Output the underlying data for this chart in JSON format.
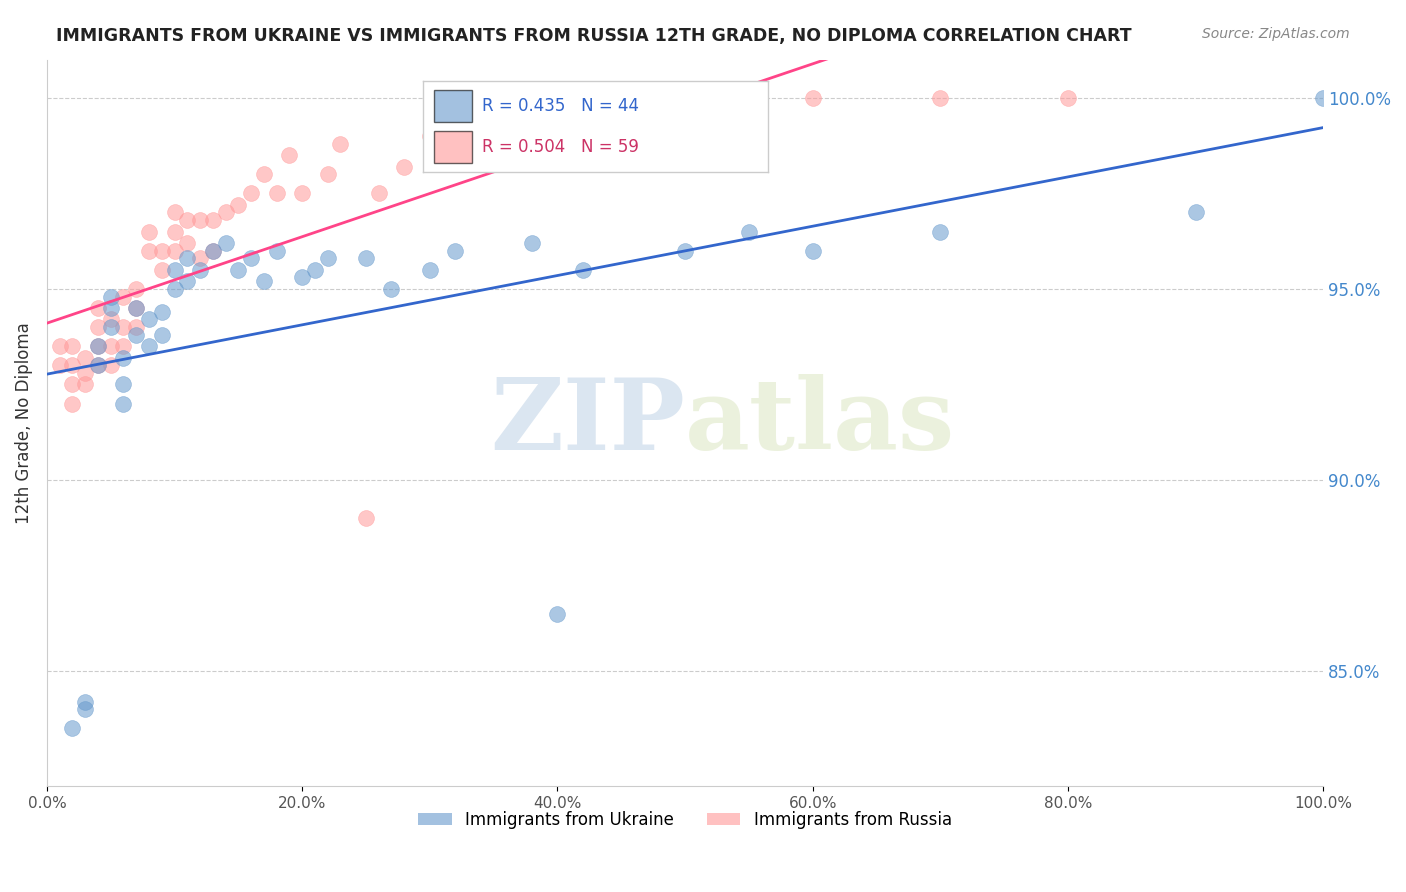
{
  "title": "IMMIGRANTS FROM UKRAINE VS IMMIGRANTS FROM RUSSIA 12TH GRADE, NO DIPLOMA CORRELATION CHART",
  "source": "Source: ZipAtlas.com",
  "ylabel": "12th Grade, No Diploma",
  "xlabel_ticks": [
    "0.0%",
    "20.0%",
    "40.0%",
    "60.0%",
    "80.0%",
    "100.0%"
  ],
  "ytick_labels": [
    "85.0%",
    "90.0%",
    "95.0%",
    "100.0%"
  ],
  "ytick_values": [
    0.85,
    0.9,
    0.95,
    1.0
  ],
  "xlim": [
    0.0,
    1.0
  ],
  "ylim": [
    0.82,
    1.01
  ],
  "ukraine_color": "#6699CC",
  "russia_color": "#FF9999",
  "ukraine_R": 0.435,
  "ukraine_N": 44,
  "russia_R": 0.504,
  "russia_N": 59,
  "watermark_zip": "ZIP",
  "watermark_atlas": "atlas",
  "legend_ukraine": "Immigrants from Ukraine",
  "legend_russia": "Immigrants from Russia",
  "ukraine_x": [
    0.02,
    0.03,
    0.03,
    0.04,
    0.04,
    0.05,
    0.05,
    0.05,
    0.06,
    0.06,
    0.06,
    0.07,
    0.07,
    0.08,
    0.08,
    0.09,
    0.09,
    0.1,
    0.1,
    0.11,
    0.11,
    0.12,
    0.13,
    0.14,
    0.15,
    0.16,
    0.17,
    0.18,
    0.2,
    0.21,
    0.22,
    0.25,
    0.27,
    0.3,
    0.32,
    0.38,
    0.4,
    0.42,
    0.5,
    0.55,
    0.6,
    0.7,
    0.9,
    1.0
  ],
  "ukraine_y": [
    0.835,
    0.84,
    0.842,
    0.93,
    0.935,
    0.94,
    0.945,
    0.948,
    0.92,
    0.925,
    0.932,
    0.938,
    0.945,
    0.935,
    0.942,
    0.938,
    0.944,
    0.95,
    0.955,
    0.952,
    0.958,
    0.955,
    0.96,
    0.962,
    0.955,
    0.958,
    0.952,
    0.96,
    0.953,
    0.955,
    0.958,
    0.958,
    0.95,
    0.955,
    0.96,
    0.962,
    0.865,
    0.955,
    0.96,
    0.965,
    0.96,
    0.965,
    0.97,
    1.0
  ],
  "russia_x": [
    0.01,
    0.01,
    0.02,
    0.02,
    0.02,
    0.02,
    0.03,
    0.03,
    0.03,
    0.04,
    0.04,
    0.04,
    0.04,
    0.05,
    0.05,
    0.05,
    0.06,
    0.06,
    0.06,
    0.07,
    0.07,
    0.07,
    0.08,
    0.08,
    0.09,
    0.09,
    0.1,
    0.1,
    0.1,
    0.11,
    0.11,
    0.12,
    0.12,
    0.13,
    0.13,
    0.14,
    0.15,
    0.16,
    0.17,
    0.18,
    0.19,
    0.2,
    0.22,
    0.23,
    0.25,
    0.26,
    0.28,
    0.3,
    0.32,
    0.35,
    0.38,
    0.4,
    0.42,
    0.45,
    0.5,
    0.55,
    0.6,
    0.7,
    0.8
  ],
  "russia_y": [
    0.93,
    0.935,
    0.92,
    0.925,
    0.93,
    0.935,
    0.925,
    0.928,
    0.932,
    0.93,
    0.935,
    0.94,
    0.945,
    0.93,
    0.935,
    0.942,
    0.935,
    0.94,
    0.948,
    0.94,
    0.945,
    0.95,
    0.96,
    0.965,
    0.955,
    0.96,
    0.96,
    0.965,
    0.97,
    0.962,
    0.968,
    0.958,
    0.968,
    0.96,
    0.968,
    0.97,
    0.972,
    0.975,
    0.98,
    0.975,
    0.985,
    0.975,
    0.98,
    0.988,
    0.89,
    0.975,
    0.982,
    0.99,
    0.988,
    0.992,
    0.995,
    0.998,
    0.999,
    1.0,
    1.0,
    1.0,
    1.0,
    1.0,
    1.0
  ]
}
